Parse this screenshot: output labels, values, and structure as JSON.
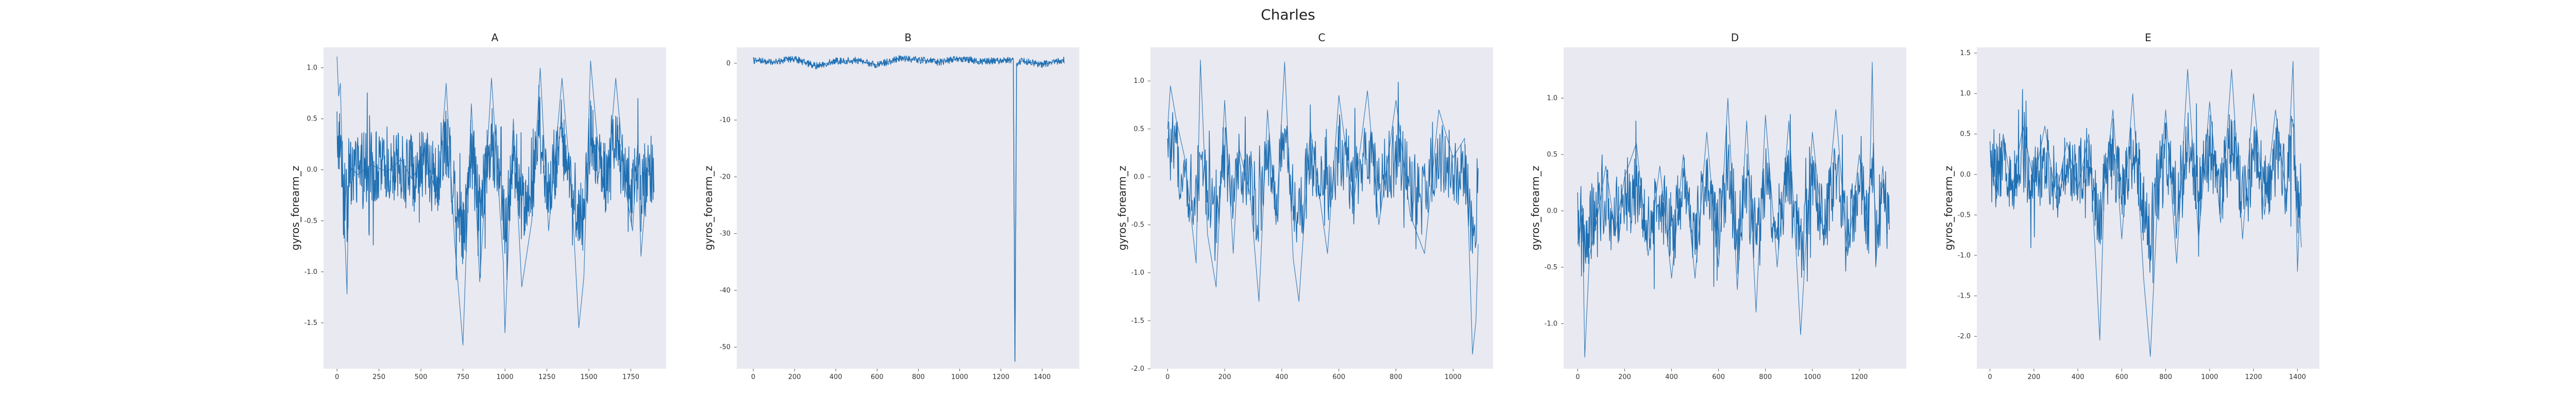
{
  "figure": {
    "title": "Charles"
  },
  "style": {
    "plot_bg": "#e9e9f1",
    "line_color": "#1f6fb2"
  },
  "chart_data": [
    {
      "type": "line",
      "title": "A",
      "xlabel": "",
      "ylabel": "gyros_forearm_z",
      "xlim": [
        -80,
        1960
      ],
      "ylim": [
        -1.95,
        1.2
      ],
      "xticks": [
        0,
        250,
        500,
        750,
        1000,
        1250,
        1500,
        1750
      ],
      "yticks": [
        -1.5,
        -1.0,
        -0.5,
        0.0,
        0.5,
        1.0
      ],
      "ytick_labels": [
        "-1.5",
        "-1.0",
        "-0.5",
        "0.0",
        "0.5",
        "1.0"
      ],
      "grid": false,
      "n_points": 1890,
      "anchors": [
        [
          0,
          1.11
        ],
        [
          10,
          0.72
        ],
        [
          20,
          0.85
        ],
        [
          30,
          0.2
        ],
        [
          45,
          -0.55
        ],
        [
          60,
          -1.22
        ],
        [
          70,
          -0.05
        ],
        [
          90,
          0.02
        ],
        [
          120,
          -0.05
        ],
        [
          200,
          0.05
        ],
        [
          300,
          -0.02
        ],
        [
          380,
          0.1
        ],
        [
          450,
          -0.1
        ],
        [
          520,
          0.2
        ],
        [
          600,
          -0.3
        ],
        [
          650,
          0.85
        ],
        [
          700,
          -0.7
        ],
        [
          750,
          -1.72
        ],
        [
          800,
          0.65
        ],
        [
          850,
          -1.1
        ],
        [
          920,
          0.9
        ],
        [
          990,
          -0.9
        ],
        [
          1000,
          -1.6
        ],
        [
          1050,
          0.5
        ],
        [
          1100,
          -1.15
        ],
        [
          1160,
          -0.5
        ],
        [
          1210,
          1.0
        ],
        [
          1260,
          -0.6
        ],
        [
          1340,
          0.9
        ],
        [
          1400,
          -0.3
        ],
        [
          1440,
          -1.55
        ],
        [
          1470,
          -1.05
        ],
        [
          1510,
          1.07
        ],
        [
          1550,
          0.3
        ],
        [
          1600,
          -0.3
        ],
        [
          1660,
          0.9
        ],
        [
          1720,
          -0.2
        ],
        [
          1760,
          -0.6
        ],
        [
          1790,
          0.25
        ],
        [
          1810,
          -0.85
        ],
        [
          1850,
          0.0
        ],
        [
          1870,
          -0.05
        ],
        [
          1885,
          -0.05
        ]
      ]
    },
    {
      "type": "line",
      "title": "B",
      "xlabel": "",
      "ylabel": "gyros_forearm_z",
      "xlim": [
        -80,
        1580
      ],
      "ylim": [
        -53.8,
        2.8
      ],
      "xticks": [
        0,
        200,
        400,
        600,
        800,
        1000,
        1200,
        1400
      ],
      "yticks": [
        -50,
        -40,
        -30,
        -20,
        -10,
        0
      ],
      "ytick_labels": [
        "-50",
        "-40",
        "-30",
        "-20",
        "-10",
        "0"
      ],
      "grid": false,
      "n_points": 1510,
      "anchors": [
        [
          0,
          0.5
        ],
        [
          100,
          0.2
        ],
        [
          200,
          0.8
        ],
        [
          300,
          -0.5
        ],
        [
          400,
          0.4
        ],
        [
          500,
          0.5
        ],
        [
          600,
          -0.3
        ],
        [
          700,
          0.8
        ],
        [
          800,
          0.6
        ],
        [
          900,
          0.2
        ],
        [
          1000,
          0.9
        ],
        [
          1100,
          0.3
        ],
        [
          1200,
          0.5
        ],
        [
          1260,
          0.7
        ],
        [
          1268,
          -52.5
        ],
        [
          1276,
          0.0
        ],
        [
          1300,
          0.4
        ],
        [
          1400,
          -0.2
        ],
        [
          1500,
          0.6
        ]
      ],
      "spikes": [
        [
          1268,
          -52.5
        ]
      ]
    },
    {
      "type": "line",
      "title": "C",
      "xlabel": "",
      "ylabel": "gyros_forearm_z",
      "xlim": [
        -60,
        1140
      ],
      "ylim": [
        -2.0,
        1.35
      ],
      "xticks": [
        0,
        200,
        400,
        600,
        800,
        1000
      ],
      "yticks": [
        -2.0,
        -1.5,
        -1.0,
        -0.5,
        0.0,
        0.5,
        1.0
      ],
      "ytick_labels": [
        "-2.0",
        "-1.5",
        "-1.0",
        "-0.5",
        "0.0",
        "0.5",
        "1.0"
      ],
      "grid": false,
      "n_points": 1090,
      "anchors": [
        [
          0,
          0.5
        ],
        [
          10,
          0.95
        ],
        [
          30,
          0.6
        ],
        [
          60,
          0.2
        ],
        [
          80,
          -0.35
        ],
        [
          100,
          -0.9
        ],
        [
          115,
          1.22
        ],
        [
          140,
          -0.6
        ],
        [
          170,
          -1.15
        ],
        [
          200,
          0.8
        ],
        [
          230,
          -0.8
        ],
        [
          250,
          0.3
        ],
        [
          290,
          -0.2
        ],
        [
          320,
          -1.3
        ],
        [
          350,
          0.7
        ],
        [
          380,
          -0.5
        ],
        [
          410,
          1.2
        ],
        [
          440,
          -0.85
        ],
        [
          460,
          -1.3
        ],
        [
          500,
          0.5
        ],
        [
          560,
          -0.8
        ],
        [
          600,
          0.85
        ],
        [
          650,
          -0.3
        ],
        [
          700,
          0.9
        ],
        [
          740,
          -0.5
        ],
        [
          800,
          0.8
        ],
        [
          850,
          -0.4
        ],
        [
          900,
          -0.8
        ],
        [
          950,
          0.7
        ],
        [
          1000,
          0.2
        ],
        [
          1040,
          0.4
        ],
        [
          1055,
          -0.6
        ],
        [
          1068,
          -1.85
        ],
        [
          1080,
          -1.5
        ],
        [
          1088,
          -0.7
        ]
      ]
    },
    {
      "type": "line",
      "title": "D",
      "xlabel": "",
      "ylabel": "gyros_forearm_z",
      "xlim": [
        -60,
        1400
      ],
      "ylim": [
        -1.4,
        1.45
      ],
      "xticks": [
        0,
        200,
        400,
        600,
        800,
        1000,
        1200
      ],
      "yticks": [
        -1.0,
        -0.5,
        0.0,
        0.5,
        1.0
      ],
      "ytick_labels": [
        "-1.0",
        "-0.5",
        "0.0",
        "0.5",
        "1.0"
      ],
      "grid": false,
      "n_points": 1330,
      "anchors": [
        [
          0,
          -0.3
        ],
        [
          20,
          0.05
        ],
        [
          30,
          -1.3
        ],
        [
          50,
          -0.4
        ],
        [
          80,
          -0.1
        ],
        [
          120,
          0.4
        ],
        [
          160,
          -0.2
        ],
        [
          200,
          0.3
        ],
        [
          250,
          0.6
        ],
        [
          300,
          -0.4
        ],
        [
          350,
          0.4
        ],
        [
          400,
          -0.6
        ],
        [
          450,
          0.5
        ],
        [
          500,
          -0.6
        ],
        [
          550,
          0.7
        ],
        [
          600,
          -0.5
        ],
        [
          640,
          1.0
        ],
        [
          680,
          -0.7
        ],
        [
          720,
          0.8
        ],
        [
          760,
          -0.9
        ],
        [
          800,
          0.85
        ],
        [
          850,
          -0.5
        ],
        [
          900,
          0.8
        ],
        [
          950,
          -1.1
        ],
        [
          1000,
          0.7
        ],
        [
          1050,
          -0.3
        ],
        [
          1100,
          0.9
        ],
        [
          1150,
          -0.4
        ],
        [
          1200,
          0.5
        ],
        [
          1240,
          -0.2
        ],
        [
          1255,
          1.32
        ],
        [
          1270,
          -0.5
        ],
        [
          1300,
          0.4
        ],
        [
          1320,
          -0.2
        ]
      ]
    },
    {
      "type": "line",
      "title": "E",
      "xlabel": "",
      "ylabel": "gyros_forearm_z",
      "xlim": [
        -60,
        1500
      ],
      "ylim": [
        -2.4,
        1.57
      ],
      "xticks": [
        0,
        200,
        400,
        600,
        800,
        1000,
        1200,
        1400
      ],
      "yticks": [
        -2.0,
        -1.5,
        -1.0,
        -0.5,
        0.0,
        0.5,
        1.0,
        1.5
      ],
      "ytick_labels": [
        "-2.0",
        "-1.5",
        "-1.0",
        "-0.5",
        "0.0",
        "0.5",
        "1.0",
        "1.5"
      ],
      "grid": false,
      "n_points": 1420,
      "anchors": [
        [
          0,
          0.3
        ],
        [
          30,
          -0.3
        ],
        [
          60,
          0.5
        ],
        [
          100,
          -0.2
        ],
        [
          150,
          0.6
        ],
        [
          200,
          -0.1
        ],
        [
          250,
          0.6
        ],
        [
          300,
          -0.3
        ],
        [
          350,
          0.4
        ],
        [
          400,
          -0.2
        ],
        [
          450,
          0.5
        ],
        [
          480,
          -1.0
        ],
        [
          500,
          -2.05
        ],
        [
          520,
          -0.2
        ],
        [
          560,
          0.8
        ],
        [
          600,
          -0.8
        ],
        [
          650,
          1.0
        ],
        [
          700,
          -1.3
        ],
        [
          730,
          -2.25
        ],
        [
          760,
          -0.5
        ],
        [
          800,
          0.8
        ],
        [
          850,
          -1.1
        ],
        [
          900,
          1.3
        ],
        [
          950,
          -0.8
        ],
        [
          1000,
          0.9
        ],
        [
          1050,
          -0.6
        ],
        [
          1100,
          1.3
        ],
        [
          1150,
          -0.8
        ],
        [
          1200,
          1.0
        ],
        [
          1250,
          -0.5
        ],
        [
          1300,
          0.8
        ],
        [
          1350,
          -0.3
        ],
        [
          1380,
          1.4
        ],
        [
          1400,
          -1.2
        ],
        [
          1410,
          -0.5
        ],
        [
          1418,
          -0.9
        ]
      ]
    }
  ]
}
